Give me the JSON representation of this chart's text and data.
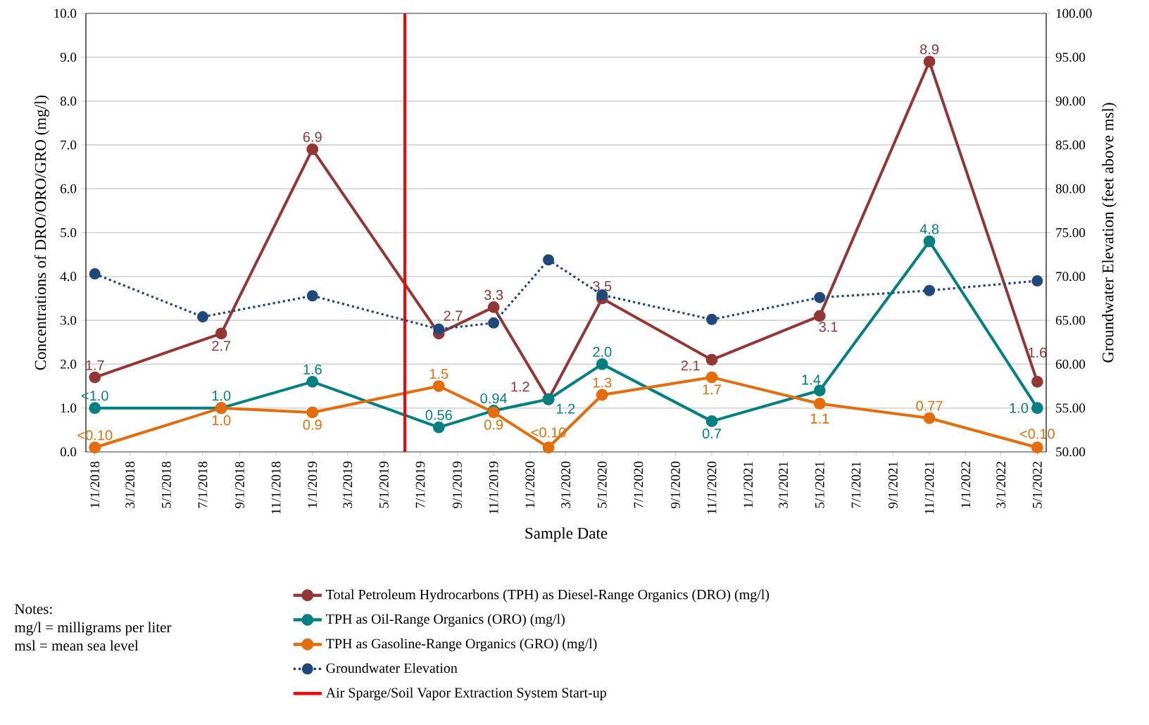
{
  "chart_data": {
    "type": "line",
    "xlabel": "Sample Date",
    "ylabel": "Concentrations of DRO/ORO/GRO (mg/l)",
    "y2label": "Groundwater Elevation (feet above msl)",
    "x": [
      "2018-01-01",
      "2018-08-01",
      "2019-01-01",
      "2019-08-01",
      "2019-11-01",
      "2020-02-01",
      "2020-05-01",
      "2020-11-01",
      "2021-05-01",
      "2021-11-01",
      "2022-05-01"
    ],
    "series": [
      {
        "name": "Total Petroleum Hydrocarbons (TPH) as Diesel-Range Organics (DRO) (mg/l)",
        "color": "#943634",
        "values": [
          1.7,
          2.7,
          6.9,
          2.7,
          3.3,
          1.2,
          3.5,
          2.1,
          3.1,
          8.9,
          1.6
        ],
        "value_labels": [
          "1.7",
          "2.7",
          "6.9",
          "2.7",
          "3.3",
          "1.2",
          "3.5",
          "2.1",
          "3.1",
          "8.9",
          "1.6"
        ]
      },
      {
        "name": "TPH as Oil-Range Organics (ORO) (mg/l)",
        "color": "#008080",
        "values": [
          1.0,
          1.0,
          1.6,
          0.56,
          0.94,
          1.2,
          2.0,
          0.7,
          1.4,
          4.8,
          1.0
        ],
        "value_labels": [
          "<1.0",
          "1.0",
          "1.6",
          "0.56",
          "0.94",
          "1.2",
          "2.0",
          "0.7",
          "1.4",
          "4.8",
          "1.0"
        ]
      },
      {
        "name": "TPH as Gasoline-Range Organics (GRO) (mg/l)",
        "color": "#e46c0a",
        "values": [
          0.1,
          1.0,
          0.9,
          1.5,
          0.9,
          0.1,
          1.3,
          1.7,
          1.1,
          0.77,
          0.1
        ],
        "value_labels": [
          "<0.10",
          "1.0",
          "0.9",
          "1.5",
          "0.9",
          "<0.10",
          "1.3",
          "1.7",
          "1.1",
          "0.77",
          "<0.10"
        ]
      },
      {
        "name": "Groundwater Elevation",
        "color": "#1f497d",
        "axis": "y2",
        "line_style": "dotted",
        "x": [
          "2018-01-01",
          "2018-07-01",
          "2019-01-01",
          "2019-08-01",
          "2019-11-01",
          "2020-02-01",
          "2020-05-01",
          "2020-11-01",
          "2021-05-01",
          "2021-11-01",
          "2022-05-01"
        ],
        "values": [
          70.3,
          65.4,
          67.8,
          64.0,
          64.7,
          71.9,
          67.9,
          65.1,
          67.6,
          68.4,
          69.5
        ]
      }
    ],
    "marker": "circle",
    "grid": "y",
    "legend": "bottom",
    "xlim": [
      "2017-12-17",
      "2022-05-16"
    ],
    "xticks": [
      {
        "value": "2018-01-01",
        "label": "1/1/2018"
      },
      {
        "value": "2018-03-01",
        "label": "3/1/2018"
      },
      {
        "value": "2018-05-01",
        "label": "5/1/2018"
      },
      {
        "value": "2018-07-01",
        "label": "7/1/2018"
      },
      {
        "value": "2018-09-01",
        "label": "9/1/2018"
      },
      {
        "value": "2018-11-01",
        "label": "11/1/2018"
      },
      {
        "value": "2019-01-01",
        "label": "1/1/2019"
      },
      {
        "value": "2019-03-01",
        "label": "3/1/2019"
      },
      {
        "value": "2019-05-01",
        "label": "5/1/2019"
      },
      {
        "value": "2019-07-01",
        "label": "7/1/2019"
      },
      {
        "value": "2019-09-01",
        "label": "9/1/2019"
      },
      {
        "value": "2019-11-01",
        "label": "11/1/2019"
      },
      {
        "value": "2020-01-01",
        "label": "1/1/2020"
      },
      {
        "value": "2020-03-01",
        "label": "3/1/2020"
      },
      {
        "value": "2020-05-01",
        "label": "5/1/2020"
      },
      {
        "value": "2020-07-01",
        "label": "7/1/2020"
      },
      {
        "value": "2020-09-01",
        "label": "9/1/2020"
      },
      {
        "value": "2020-11-01",
        "label": "11/1/2020"
      },
      {
        "value": "2021-01-01",
        "label": "1/1/2021"
      },
      {
        "value": "2021-03-01",
        "label": "3/1/2021"
      },
      {
        "value": "2021-05-01",
        "label": "5/1/2021"
      },
      {
        "value": "2021-07-01",
        "label": "7/1/2021"
      },
      {
        "value": "2021-09-01",
        "label": "9/1/2021"
      },
      {
        "value": "2021-11-01",
        "label": "11/1/2021"
      },
      {
        "value": "2022-01-01",
        "label": "1/1/2022"
      },
      {
        "value": "2022-03-01",
        "label": "3/1/2022"
      },
      {
        "value": "2022-05-01",
        "label": "5/1/2022"
      }
    ],
    "ylim": [
      0,
      10
    ],
    "yticks": [
      {
        "value": 0,
        "label": "0.0"
      },
      {
        "value": 1,
        "label": "1.0"
      },
      {
        "value": 2,
        "label": "2.0"
      },
      {
        "value": 3,
        "label": "3.0"
      },
      {
        "value": 4,
        "label": "4.0"
      },
      {
        "value": 5,
        "label": "5.0"
      },
      {
        "value": 6,
        "label": "6.0"
      },
      {
        "value": 7,
        "label": "7.0"
      },
      {
        "value": 8,
        "label": "8.0"
      },
      {
        "value": 9,
        "label": "9.0"
      },
      {
        "value": 10,
        "label": "10.0"
      }
    ],
    "y2lim": [
      50,
      100
    ],
    "y2ticks": [
      {
        "value": 50,
        "label": "50.00"
      },
      {
        "value": 55,
        "label": "55.00"
      },
      {
        "value": 60,
        "label": "60.00"
      },
      {
        "value": 65,
        "label": "65.00"
      },
      {
        "value": 70,
        "label": "70.00"
      },
      {
        "value": 75,
        "label": "75.00"
      },
      {
        "value": 80,
        "label": "80.00"
      },
      {
        "value": 85,
        "label": "85.00"
      },
      {
        "value": 90,
        "label": "90.00"
      },
      {
        "value": 95,
        "label": "95.00"
      },
      {
        "value": 100,
        "label": "100.00"
      }
    ],
    "ref_lines": [
      {
        "axis": "x",
        "value": "2019-06-05",
        "label": "Air Sparge/Soil Vapor Extraction System Start-up",
        "color": "#ff0000"
      }
    ],
    "annotations": [
      "Notes:",
      "mg/l = milligrams per liter",
      "msl = mean sea level"
    ]
  }
}
